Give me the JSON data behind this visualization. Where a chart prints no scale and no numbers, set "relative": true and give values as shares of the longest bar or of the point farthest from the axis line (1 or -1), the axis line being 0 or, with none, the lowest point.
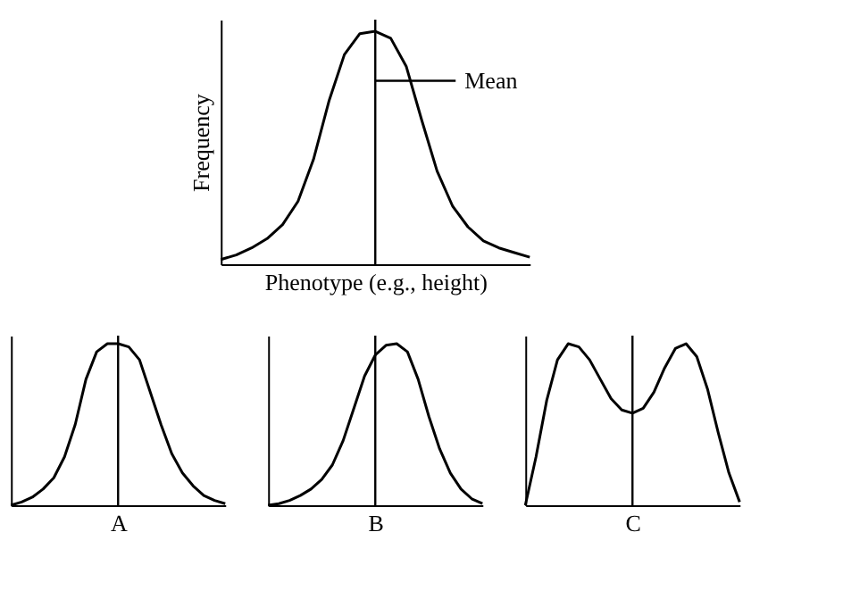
{
  "chart_data": [
    {
      "type": "line",
      "relative": true,
      "xlabel": "Phenotype (e.g., height)",
      "ylabel": "Frequency",
      "categories": [
        null,
        null,
        null,
        null,
        null,
        null,
        null,
        null,
        null,
        null,
        null,
        null,
        null,
        null,
        null,
        null,
        null,
        null,
        null,
        null,
        null
      ],
      "tick_labels": false,
      "color": "#000000",
      "values": [
        0.02,
        0.04,
        0.07,
        0.11,
        0.17,
        0.27,
        0.45,
        0.7,
        0.9,
        0.99,
        1.0,
        0.97,
        0.85,
        0.62,
        0.4,
        0.25,
        0.16,
        0.1,
        0.07,
        0.05,
        0.03
      ],
      "annotations": [
        "Mean"
      ]
    },
    {
      "type": "line",
      "relative": true,
      "xlabel": "A",
      "categories": [
        null,
        null,
        null,
        null,
        null,
        null,
        null,
        null,
        null,
        null,
        null,
        null,
        null,
        null,
        null,
        null,
        null,
        null,
        null,
        null,
        null
      ],
      "tick_labels": false,
      "color": "#000000",
      "values": [
        0.0,
        0.02,
        0.05,
        0.1,
        0.17,
        0.3,
        0.5,
        0.78,
        0.95,
        1.0,
        1.0,
        0.98,
        0.9,
        0.7,
        0.5,
        0.32,
        0.2,
        0.12,
        0.06,
        0.03,
        0.01
      ]
    },
    {
      "type": "line",
      "relative": true,
      "xlabel": "B",
      "categories": [
        null,
        null,
        null,
        null,
        null,
        null,
        null,
        null,
        null,
        null,
        null,
        null,
        null,
        null,
        null,
        null,
        null,
        null,
        null,
        null,
        null
      ],
      "tick_labels": false,
      "color": "#000000",
      "values": [
        0.0,
        0.01,
        0.03,
        0.06,
        0.1,
        0.16,
        0.25,
        0.4,
        0.6,
        0.8,
        0.93,
        0.99,
        1.0,
        0.95,
        0.78,
        0.55,
        0.35,
        0.2,
        0.1,
        0.04,
        0.01
      ]
    },
    {
      "type": "line",
      "relative": true,
      "xlabel": "C",
      "categories": [
        null,
        null,
        null,
        null,
        null,
        null,
        null,
        null,
        null,
        null,
        null,
        null,
        null,
        null,
        null,
        null,
        null,
        null,
        null,
        null,
        null
      ],
      "tick_labels": false,
      "color": "#000000",
      "values": [
        0.0,
        0.3,
        0.65,
        0.9,
        1.0,
        0.98,
        0.9,
        0.78,
        0.66,
        0.59,
        0.57,
        0.6,
        0.7,
        0.85,
        0.97,
        1.0,
        0.92,
        0.72,
        0.45,
        0.2,
        0.02
      ]
    }
  ]
}
